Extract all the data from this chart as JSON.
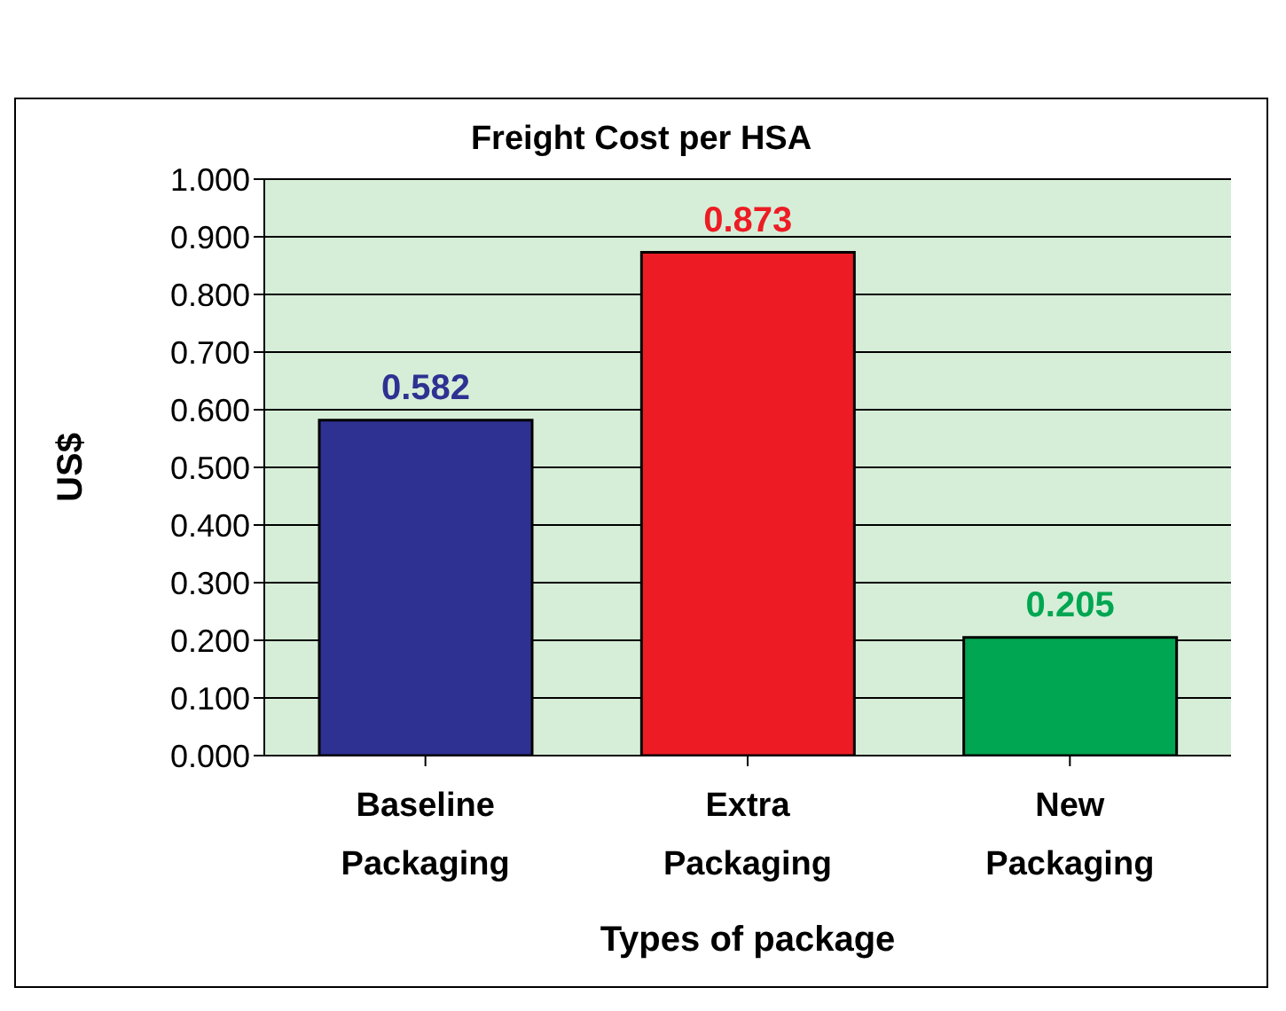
{
  "chart_data": {
    "type": "bar",
    "title": "Freight Cost per HSA",
    "xlabel": "Types of package",
    "ylabel": "US$",
    "categories": [
      "Baseline Packaging",
      "Extra Packaging",
      "New Packaging"
    ],
    "values": [
      0.582,
      0.873,
      0.205
    ],
    "colors": [
      "#2e3192",
      "#ed1c24",
      "#00a651"
    ],
    "ylim": [
      0,
      1
    ],
    "yticks": [
      {
        "value": 0,
        "label": "0.000"
      },
      {
        "value": 0.1,
        "label": "0.100"
      },
      {
        "value": 0.2,
        "label": "0.200"
      },
      {
        "value": 0.3,
        "label": "0.300"
      },
      {
        "value": 0.4,
        "label": "0.400"
      },
      {
        "value": 0.5,
        "label": "0.500"
      },
      {
        "value": 0.6,
        "label": "0.600"
      },
      {
        "value": 0.7,
        "label": "0.700"
      },
      {
        "value": 0.8,
        "label": "0.800"
      },
      {
        "value": 0.9,
        "label": "0.900"
      },
      {
        "value": 1,
        "label": "1.000"
      }
    ],
    "grid": "y",
    "data_labels": true,
    "legend": false
  }
}
